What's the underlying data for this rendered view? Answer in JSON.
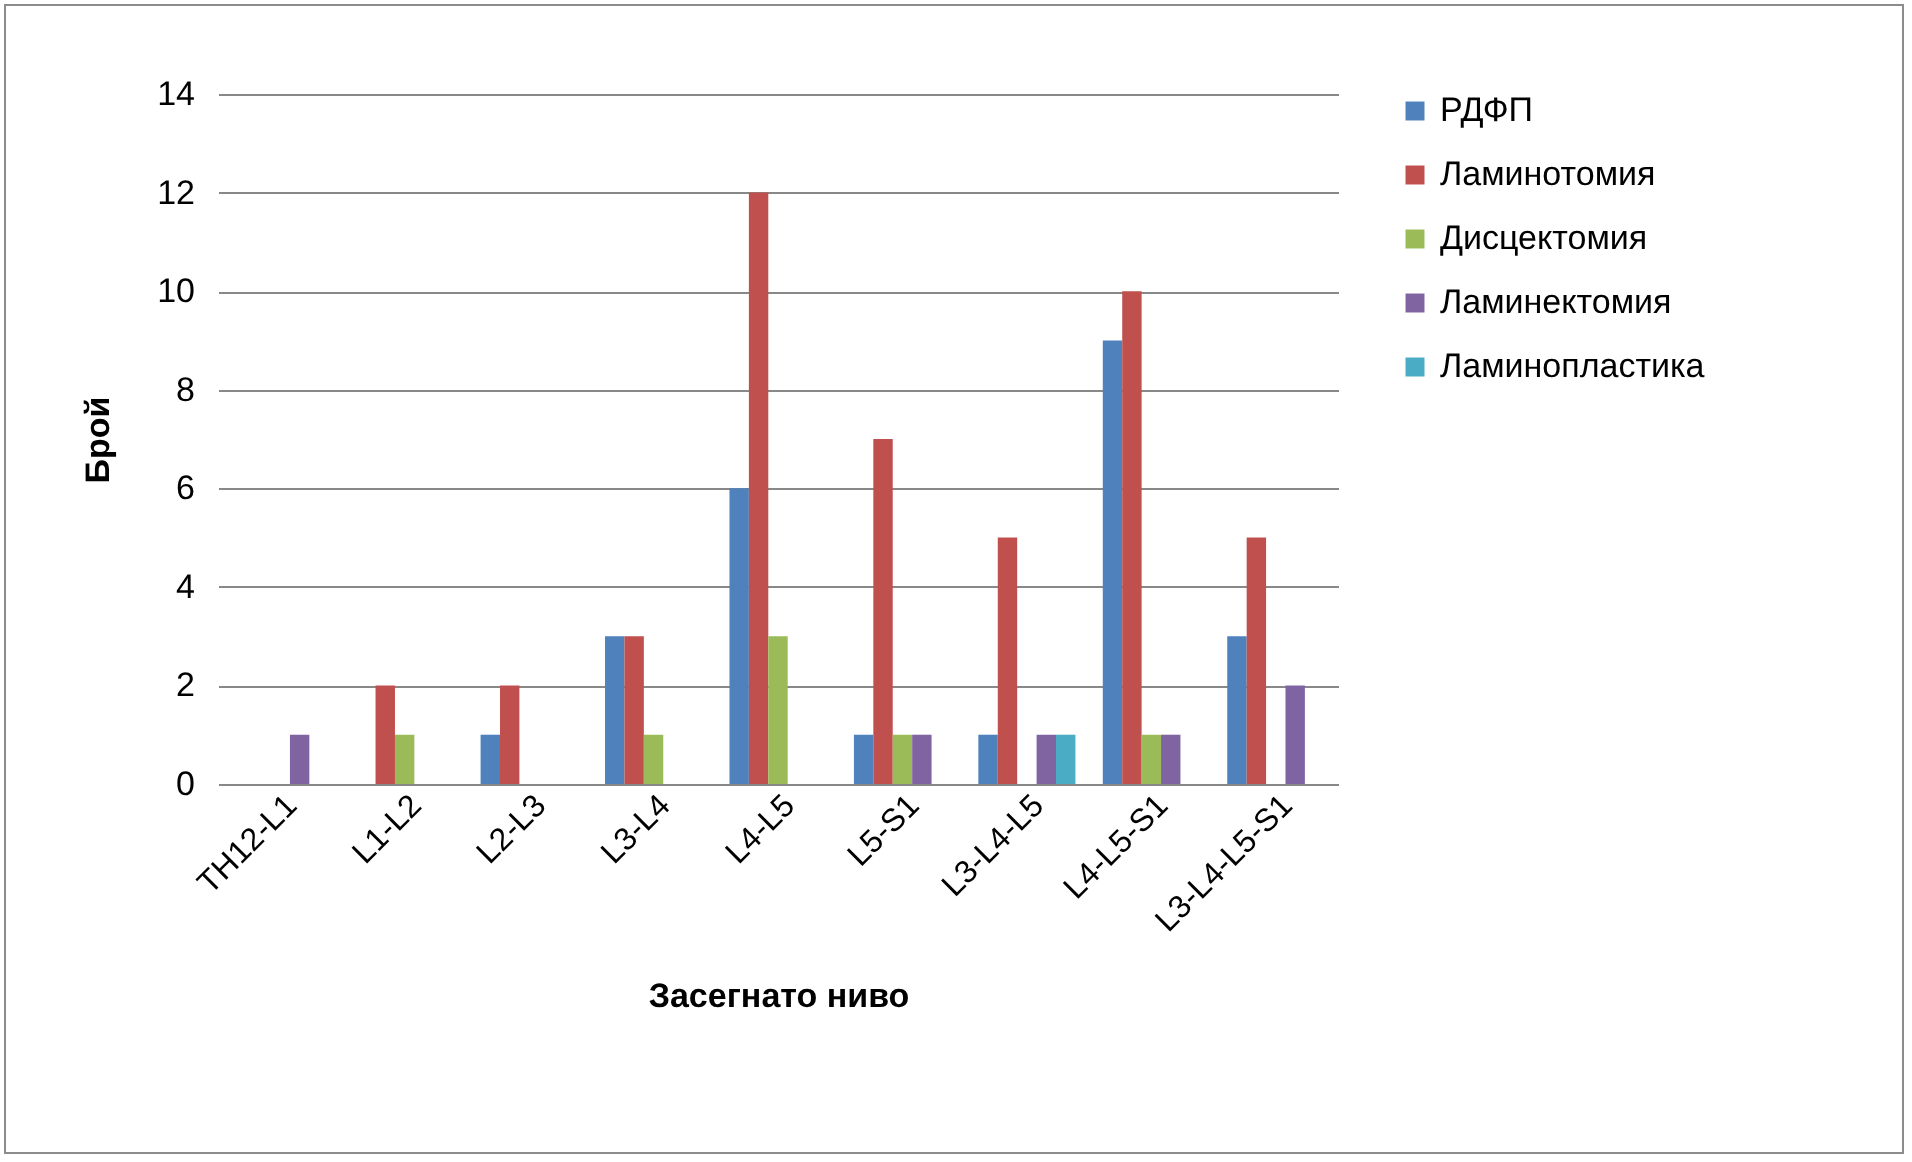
{
  "chart_data": {
    "type": "bar",
    "xlabel": "Засегнато ниво",
    "ylabel": "Брой",
    "categories": [
      "TH12-L1",
      "L1-L2",
      "L2-L3",
      "L3-L4",
      "L4-L5",
      "L5-S1",
      "L3-L4-L5",
      "L4-L5-S1",
      "L3-L4-L5-S1"
    ],
    "series": [
      {
        "name": "РДФП",
        "color": "#4f81bd",
        "values": [
          null,
          null,
          1,
          3,
          6,
          1,
          1,
          9,
          3
        ]
      },
      {
        "name": "Ламинотомия",
        "color": "#c0504d",
        "values": [
          null,
          2,
          2,
          3,
          12,
          7,
          5,
          10,
          5
        ]
      },
      {
        "name": "Дисцектомия",
        "color": "#9bbb59",
        "values": [
          null,
          1,
          null,
          1,
          3,
          1,
          null,
          1,
          null
        ]
      },
      {
        "name": "Ламинектомия",
        "color": "#8064a2",
        "values": [
          1,
          null,
          null,
          null,
          null,
          1,
          1,
          1,
          2
        ]
      },
      {
        "name": "Ламинопластика",
        "color": "#4bacc6",
        "values": [
          null,
          null,
          null,
          null,
          null,
          null,
          1,
          null,
          null
        ]
      }
    ],
    "ylim": [
      0,
      14
    ],
    "yticks": [
      0,
      2,
      4,
      6,
      8,
      10,
      12,
      14
    ],
    "grid": "y",
    "legend": "right"
  }
}
